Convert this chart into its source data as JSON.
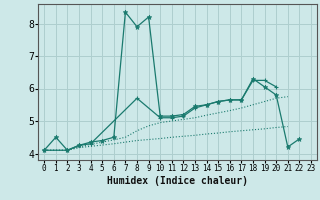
{
  "xlabel": "Humidex (Indice chaleur)",
  "xlim": [
    -0.5,
    23.5
  ],
  "ylim": [
    3.8,
    8.6
  ],
  "yticks": [
    4,
    5,
    6,
    7,
    8
  ],
  "xticks": [
    0,
    1,
    2,
    3,
    4,
    5,
    6,
    7,
    8,
    9,
    10,
    11,
    12,
    13,
    14,
    15,
    16,
    17,
    18,
    19,
    20,
    21,
    22,
    23
  ],
  "bg_color": "#cde8e8",
  "grid_color": "#aecece",
  "line_color": "#1a7a6e",
  "s1_x": [
    0,
    1,
    2,
    3,
    4,
    5,
    6,
    7,
    8,
    9,
    10,
    11,
    12,
    13,
    14,
    15,
    16,
    17,
    18,
    19,
    20,
    21,
    22
  ],
  "s1_y": [
    4.1,
    4.5,
    4.1,
    4.25,
    4.35,
    4.4,
    4.5,
    8.35,
    7.9,
    8.2,
    5.15,
    5.15,
    5.2,
    5.45,
    5.5,
    5.6,
    5.65,
    5.65,
    6.3,
    6.05,
    5.8,
    4.2,
    4.45
  ],
  "s2_x": [
    0,
    2,
    3,
    4,
    8,
    10,
    11,
    12,
    13,
    14,
    15,
    16,
    17,
    18,
    19,
    20
  ],
  "s2_y": [
    4.1,
    4.1,
    4.25,
    4.3,
    5.7,
    5.1,
    5.1,
    5.15,
    5.4,
    5.5,
    5.6,
    5.65,
    5.65,
    6.25,
    6.25,
    6.05
  ],
  "s3_x": [
    0,
    2,
    3,
    4,
    5,
    6,
    7,
    8,
    9,
    10,
    11,
    12,
    13,
    14,
    15,
    16,
    17,
    18,
    19,
    20,
    21
  ],
  "s3_y": [
    4.1,
    4.1,
    4.18,
    4.22,
    4.26,
    4.3,
    4.35,
    4.4,
    4.43,
    4.46,
    4.5,
    4.53,
    4.56,
    4.6,
    4.63,
    4.67,
    4.7,
    4.73,
    4.76,
    4.8,
    4.83
  ],
  "s4_x": [
    0,
    2,
    3,
    4,
    5,
    6,
    7,
    8,
    9,
    10,
    11,
    12,
    13,
    14,
    15,
    16,
    17,
    18,
    19,
    20,
    21
  ],
  "s4_y": [
    4.1,
    4.1,
    4.2,
    4.28,
    4.35,
    4.42,
    4.5,
    4.7,
    4.85,
    4.95,
    5.0,
    5.05,
    5.1,
    5.18,
    5.25,
    5.32,
    5.4,
    5.5,
    5.6,
    5.7,
    5.75
  ]
}
